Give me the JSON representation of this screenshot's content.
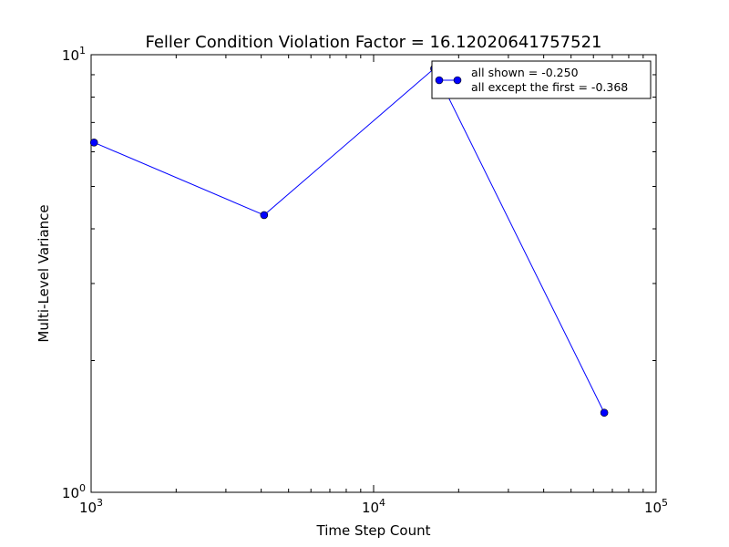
{
  "chart_data": {
    "type": "line",
    "title": "Feller Condition Violation Factor = 16.12020641757521",
    "xlabel": "Time Step Count",
    "ylabel": "Multi-Level Variance",
    "xscale": "log",
    "yscale": "log",
    "xlim": [
      1000,
      100000
    ],
    "ylim": [
      1,
      10
    ],
    "x_ticks": [
      {
        "value": 1000,
        "base": "10",
        "exp": "3"
      },
      {
        "value": 10000,
        "base": "10",
        "exp": "4"
      },
      {
        "value": 100000,
        "base": "10",
        "exp": "5"
      }
    ],
    "y_ticks": [
      {
        "value": 1,
        "base": "10",
        "exp": "0"
      },
      {
        "value": 10,
        "base": "10",
        "exp": "1"
      }
    ],
    "grid": false,
    "legend_position": "top-right",
    "series": [
      {
        "name": "all shown = -0.250",
        "color": "#0000ff",
        "marker": "circle",
        "x": [
          1024,
          4096,
          16384,
          65536
        ],
        "y": [
          6.3,
          4.3,
          9.3,
          1.52
        ]
      }
    ],
    "legend_entries": [
      "all shown = -0.250",
      "all except the first = -0.368"
    ]
  }
}
